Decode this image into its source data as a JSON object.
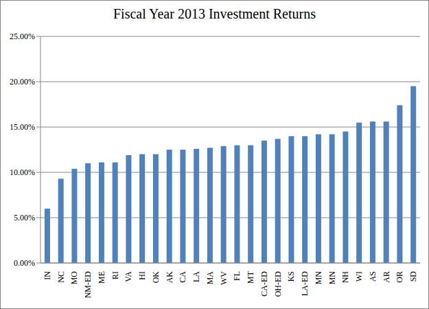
{
  "chart_data": {
    "type": "bar",
    "title": "Fiscal Year 2013 Investment Returns",
    "categories": [
      "IN",
      "NC",
      "MO",
      "NM-ED",
      "ME",
      "RI",
      "VA",
      "HI",
      "OK",
      "AK",
      "CA",
      "LA",
      "MA",
      "WV",
      "FL",
      "MT",
      "CA-ED",
      "OH-ED",
      "KS",
      "LA-ED",
      "MN",
      "MN",
      "NH",
      "WI",
      "AS",
      "AR",
      "OR",
      "SD"
    ],
    "values": [
      6.0,
      9.3,
      10.4,
      11.0,
      11.1,
      11.1,
      11.9,
      12.0,
      12.0,
      12.5,
      12.5,
      12.6,
      12.7,
      12.9,
      13.0,
      13.0,
      13.5,
      13.7,
      14.0,
      14.0,
      14.2,
      14.2,
      14.5,
      15.5,
      15.6,
      15.6,
      17.4,
      19.5
    ],
    "color": "#4f81bd",
    "ylim": [
      0,
      25
    ],
    "yticks": [
      {
        "value": 0,
        "label": "0.00%"
      },
      {
        "value": 5,
        "label": "5.00%"
      },
      {
        "value": 10,
        "label": "10.00%"
      },
      {
        "value": 15,
        "label": "15.00%"
      },
      {
        "value": 20,
        "label": "20.00%"
      },
      {
        "value": 25,
        "label": "25.00%"
      }
    ],
    "grid": true
  }
}
